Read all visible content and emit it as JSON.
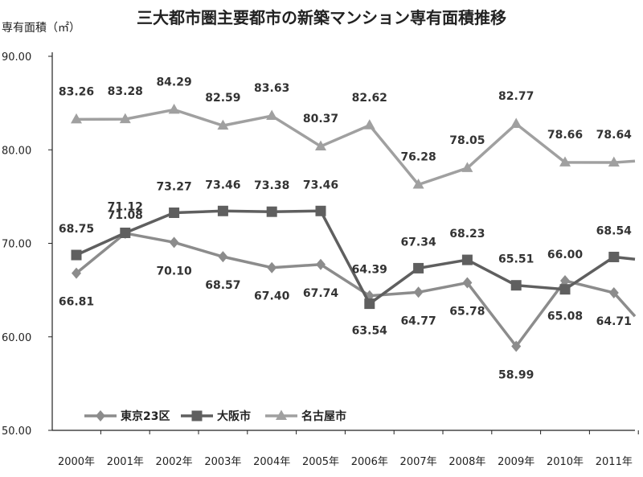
{
  "chart_data": {
    "type": "line",
    "title": "三大都市圏主要都市の新築マンション専有面積推移",
    "ylabel": "専有面積（㎡）",
    "xlabel": "",
    "categories": [
      "2000年",
      "2001年",
      "2002年",
      "2003年",
      "2004年",
      "2005年",
      "2006年",
      "2007年",
      "2008年",
      "2009年",
      "2010年",
      "2011年"
    ],
    "ylim": [
      50,
      90
    ],
    "yticks": [
      "50.00",
      "60.00",
      "70.00",
      "80.00",
      "90.00"
    ],
    "grid": false,
    "legend_position": "bottom-left",
    "series": [
      {
        "name": "東京23区",
        "marker": "diamond",
        "color": "#8c8c8c",
        "values": [
          66.81,
          71.08,
          70.1,
          68.57,
          67.4,
          67.74,
          64.39,
          64.77,
          65.78,
          58.99,
          66.0,
          64.71
        ],
        "labels": [
          "66.81",
          "71.08",
          "70.10",
          "68.57",
          "67.40",
          "67.74",
          "64.39",
          "64.77",
          "65.78",
          "58.99",
          "66.00",
          "64.71"
        ],
        "continues_to": 62.2
      },
      {
        "name": "大阪市",
        "marker": "square",
        "color": "#5f5f5f",
        "values": [
          68.75,
          71.12,
          73.27,
          73.46,
          73.38,
          73.46,
          63.54,
          67.34,
          68.23,
          65.51,
          65.08,
          68.54
        ],
        "labels": [
          "68.75",
          "71.12",
          "73.27",
          "73.46",
          "73.38",
          "73.46",
          "63.54",
          "67.34",
          "68.23",
          "65.51",
          "65.08",
          "68.54"
        ],
        "continues_to": 68.3
      },
      {
        "name": "名古屋市",
        "marker": "triangle",
        "color": "#a0a0a0",
        "values": [
          83.26,
          83.28,
          84.29,
          82.59,
          83.63,
          80.37,
          82.62,
          76.28,
          78.05,
          82.77,
          78.66,
          78.64
        ],
        "labels": [
          "83.26",
          "83.28",
          "84.29",
          "82.59",
          "83.63",
          "80.37",
          "82.62",
          "76.28",
          "78.05",
          "82.77",
          "78.66",
          "78.64"
        ],
        "continues_to": 78.8
      }
    ]
  }
}
